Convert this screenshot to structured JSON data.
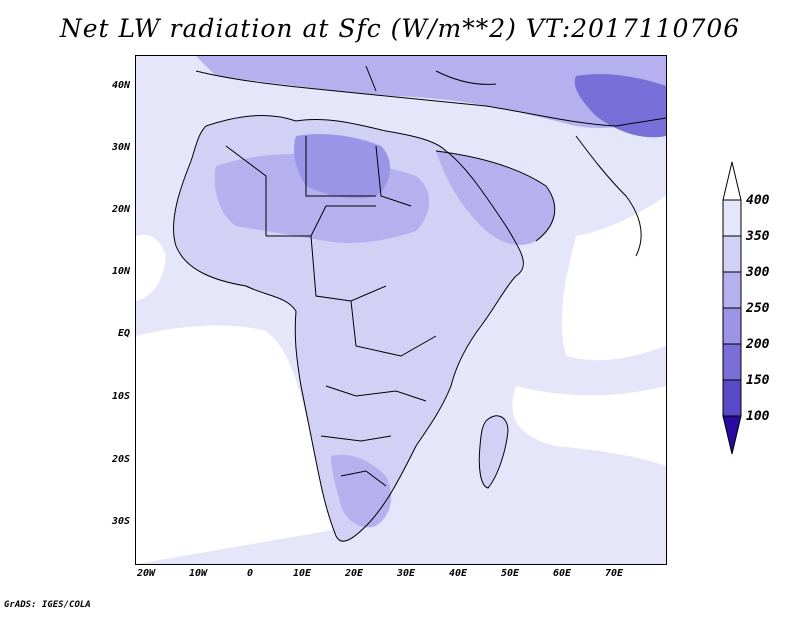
{
  "title": "Net LW radiation at Sfc (W/m**2) VT:2017110706",
  "footer": "GrADS: IGES/COLA",
  "lat_ticks": [
    "40N",
    "30N",
    "20N",
    "10N",
    "EQ",
    "10S",
    "20S",
    "30S"
  ],
  "lon_ticks": [
    "20W",
    "10W",
    "0",
    "10E",
    "20E",
    "30E",
    "40E",
    "50E",
    "60E",
    "70E"
  ],
  "legend": {
    "levels": [
      "400",
      "350",
      "300",
      "250",
      "200",
      "150",
      "100"
    ],
    "colors": [
      "#e6e6fa",
      "#d2d0f5",
      "#b6b1ee",
      "#9c94e6",
      "#7a6fd8",
      "#5a4ac7",
      "#3a20b0"
    ],
    "over_color": "#ffffff",
    "under_color": "#2a0aa0"
  },
  "map_colors": {
    "background": "#ffffff",
    "ocean": "#e6e6fa",
    "land_light": "#d2d0f5",
    "land_mid": "#b6b1ee",
    "land_dark": "#9c94e6",
    "land_darker": "#7a6fd8",
    "border": "#000000"
  }
}
